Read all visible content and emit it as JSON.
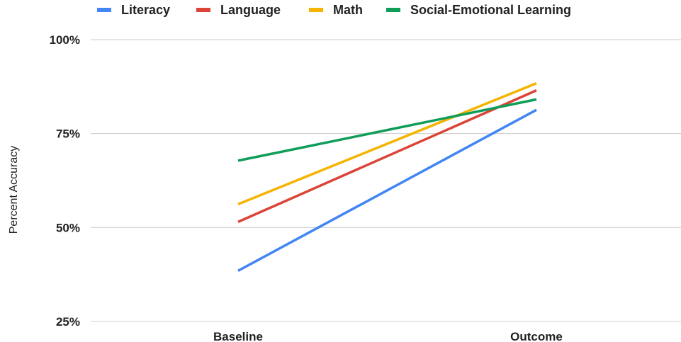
{
  "chart_data": {
    "type": "line",
    "categories": [
      "Baseline",
      "Outcome"
    ],
    "series": [
      {
        "name": "Literacy",
        "color": "#4285F4",
        "values": [
          38.5,
          81.3
        ]
      },
      {
        "name": "Language",
        "color": "#DB4437",
        "values": [
          51.5,
          86.5
        ]
      },
      {
        "name": "Math",
        "color": "#F4B400",
        "values": [
          56.2,
          88.4
        ]
      },
      {
        "name": "Social-Emotional Learning",
        "color": "#0F9D58",
        "values": [
          67.8,
          84.1
        ]
      }
    ],
    "xlabel": "",
    "ylabel": "Percent Accuracy",
    "ylim": [
      25,
      100
    ],
    "yticks": [
      25,
      50,
      75,
      100
    ],
    "ytick_labels": [
      "25%",
      "50%",
      "75%",
      "100%"
    ],
    "grid": true,
    "legend_position": "top"
  }
}
